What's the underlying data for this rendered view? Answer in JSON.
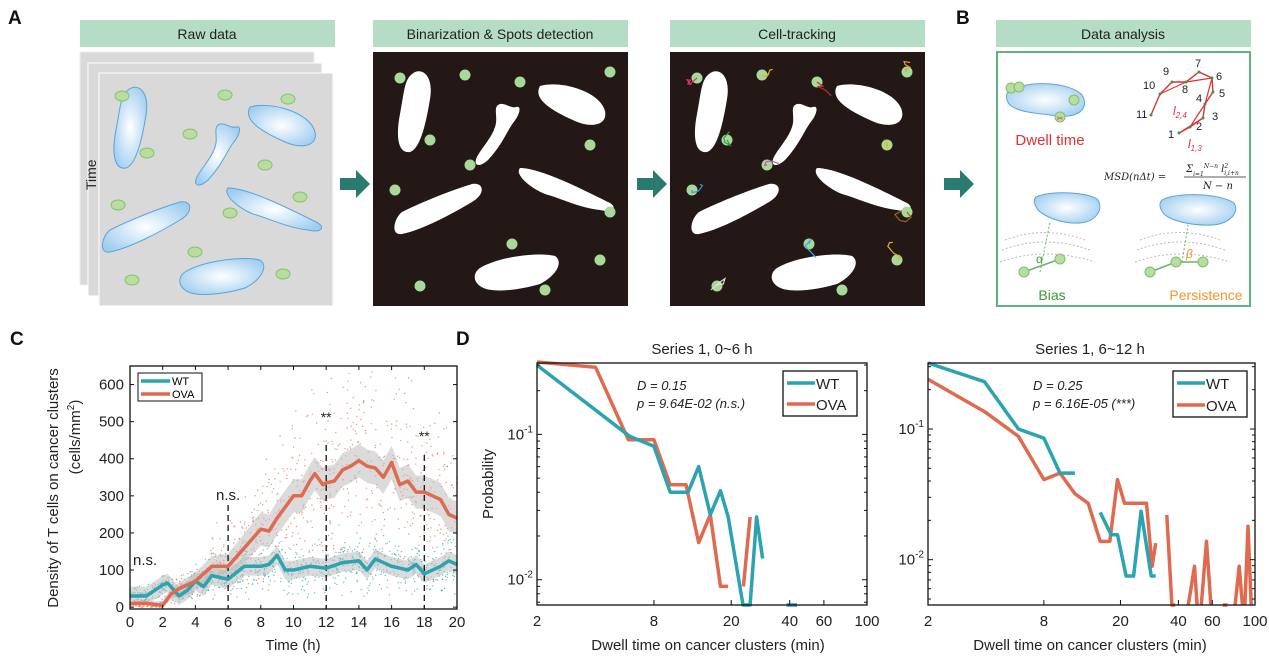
{
  "panels": {
    "a": "A",
    "b": "B",
    "c": "C",
    "d": "D"
  },
  "pipeline": {
    "raw_data": "Raw data",
    "time_label": "Time",
    "binarization": "Binarization & Spots detection",
    "tracking": "Cell-tracking",
    "analysis": "Data analysis"
  },
  "analysis_box": {
    "dwell_time": "Dwell time",
    "bias": "Bias",
    "persistence": "Persistence",
    "alpha": "α",
    "beta": "β",
    "track_numbers": [
      "1",
      "2",
      "3",
      "4",
      "5",
      "6",
      "7",
      "8",
      "9",
      "10",
      "11"
    ],
    "l24": "l",
    "l24_sub": "2,4",
    "l13": "l",
    "l13_sub": "1,3",
    "msd_lhs": "MSD(nΔt) =",
    "msd_num": "Σ",
    "msd_num_sup": "N−n",
    "msd_num_sub": "i=1",
    "msd_num_term": " l",
    "msd_num_term_sup": "2",
    "msd_num_term_sub": "i,i+n",
    "msd_den": "N − n"
  },
  "colors": {
    "wt": "#2ba3b0",
    "ova": "#e06a50",
    "header": "#b5dcc4",
    "arrow": "#2b7a6f",
    "dwell": "#e0303a",
    "bias": "#3a9a3a",
    "persistence": "#f0952a"
  },
  "chart_data": [
    {
      "type": "line",
      "panel": "C",
      "xlabel": "Time (h)",
      "ylabel": "Density of T cells on cancer clusters",
      "ylabel2": "(cells/mm",
      "ylabel2_sup": "2",
      "ylabel2_end": ")",
      "xlim": [
        0,
        20
      ],
      "ylim": [
        -5,
        650
      ],
      "xticks": [
        "0",
        "2",
        "4",
        "6",
        "8",
        "10",
        "12",
        "14",
        "16",
        "18",
        "20"
      ],
      "yticks": [
        "0",
        "100",
        "200",
        "300",
        "400",
        "500",
        "600"
      ],
      "legend": "top-left",
      "series": [
        {
          "name": "WT",
          "points": [
            [
              0,
              30
            ],
            [
              1,
              30
            ],
            [
              2,
              60
            ],
            [
              2.3,
              65
            ],
            [
              3,
              30
            ],
            [
              3.5,
              45
            ],
            [
              4,
              70
            ],
            [
              4.5,
              55
            ],
            [
              5,
              85
            ],
            [
              5.5,
              80
            ],
            [
              6,
              75
            ],
            [
              7,
              110
            ],
            [
              8,
              110
            ],
            [
              8.5,
              115
            ],
            [
              9,
              140
            ],
            [
              9.5,
              100
            ],
            [
              10,
              100
            ],
            [
              11,
              110
            ],
            [
              12,
              105
            ],
            [
              13,
              120
            ],
            [
              14,
              125
            ],
            [
              14.5,
              100
            ],
            [
              15,
              130
            ],
            [
              16,
              110
            ],
            [
              17,
              100
            ],
            [
              17.5,
              115
            ],
            [
              18,
              90
            ],
            [
              19,
              110
            ],
            [
              19.5,
              125
            ],
            [
              20,
              115
            ]
          ]
        },
        {
          "name": "OVA",
          "points": [
            [
              0,
              10
            ],
            [
              1,
              10
            ],
            [
              2,
              5
            ],
            [
              2.5,
              35
            ],
            [
              3,
              50
            ],
            [
              4,
              70
            ],
            [
              5,
              110
            ],
            [
              6,
              110
            ],
            [
              7,
              160
            ],
            [
              8,
              210
            ],
            [
              8.5,
              205
            ],
            [
              9,
              240
            ],
            [
              10,
              300
            ],
            [
              10.5,
              300
            ],
            [
              11,
              340
            ],
            [
              11.3,
              360
            ],
            [
              11.8,
              330
            ],
            [
              12,
              335
            ],
            [
              12.5,
              340
            ],
            [
              13,
              370
            ],
            [
              13.5,
              380
            ],
            [
              14,
              395
            ],
            [
              14.5,
              380
            ],
            [
              15,
              375
            ],
            [
              15.5,
              350
            ],
            [
              16,
              390
            ],
            [
              16.5,
              330
            ],
            [
              17,
              340
            ],
            [
              17.5,
              310
            ],
            [
              18,
              310
            ],
            [
              18.5,
              300
            ],
            [
              19,
              290
            ],
            [
              19.5,
              250
            ],
            [
              20,
              240
            ]
          ]
        }
      ],
      "annotations": [
        {
          "x": 0,
          "label": "n.s."
        },
        {
          "x": 6,
          "label": "n.s."
        },
        {
          "x": 12,
          "label": "**"
        },
        {
          "x": 18,
          "label": "**"
        }
      ]
    },
    {
      "type": "line",
      "panel": "D",
      "title": "Series 1, 0~6 h",
      "xlabel": "Dwell time on cancer clusters (min)",
      "ylabel": "Probability",
      "xscale": "log",
      "yscale": "log",
      "xlim": [
        2,
        100
      ],
      "ylim": [
        0.0067,
        0.31
      ],
      "xticks": [
        "2",
        "8",
        "20",
        "40",
        "60",
        "100"
      ],
      "yticks": [
        {
          "base": "10",
          "exp": "-1"
        },
        {
          "base": "10",
          "exp": "-2"
        }
      ],
      "legend": "top-right",
      "stat_d": "D = 0.15",
      "stat_p": "p = 9.64E-02 (n.s.)",
      "series": [
        {
          "name": "WT",
          "points": [
            [
              2,
              0.3
            ],
            [
              6,
              0.097
            ],
            [
              8,
              0.083
            ],
            [
              9.7,
              0.04
            ],
            [
              12,
              0.04
            ],
            [
              13.6,
              0.06
            ],
            [
              15.6,
              0.028
            ],
            [
              17.6,
              0.041
            ],
            [
              19.3,
              0.027
            ],
            [
              23,
              0.0067
            ],
            [
              25,
              0.0067
            ],
            [
              27,
              0.027
            ],
            [
              29,
              0.014
            ],
            null,
            [
              38.5,
              0.0067
            ],
            [
              43.6,
              0.0067
            ]
          ]
        },
        {
          "name": "OVA",
          "points": [
            [
              2,
              0.315
            ],
            [
              4,
              0.29
            ],
            [
              5.9,
              0.092
            ],
            [
              8,
              0.092
            ],
            [
              9.7,
              0.045
            ],
            [
              11.7,
              0.045
            ],
            [
              13.6,
              0.018
            ],
            [
              15.6,
              0.028
            ],
            [
              17.6,
              0.009
            ],
            [
              19.3,
              0.009
            ],
            null,
            [
              23.1,
              0.009
            ],
            [
              25,
              0.027
            ]
          ]
        }
      ]
    },
    {
      "type": "line",
      "panel": "D",
      "title": "Series 1, 6~12 h",
      "xlabel": "Dwell time on cancer clusters (min)",
      "xscale": "log",
      "yscale": "log",
      "xlim": [
        2,
        100
      ],
      "ylim": [
        0.0045,
        0.32
      ],
      "xticks": [
        "2",
        "8",
        "20",
        "40",
        "60",
        "100"
      ],
      "yticks": [
        {
          "base": "10",
          "exp": "-1"
        },
        {
          "base": "10",
          "exp": "-2"
        }
      ],
      "legend": "top-right",
      "stat_d": "D = 0.25",
      "stat_p": "p = 6.16E-05 (***)",
      "series": [
        {
          "name": "WT",
          "points": [
            [
              2,
              0.32
            ],
            [
              3.93,
              0.23
            ],
            [
              5.9,
              0.1
            ],
            [
              8,
              0.085
            ],
            [
              9.7,
              0.046
            ],
            [
              11.6,
              0.046
            ],
            null,
            [
              15.7,
              0.023
            ],
            [
              17.9,
              0.0155
            ],
            [
              19.3,
              0.0155
            ],
            [
              21.4,
              0.0075
            ],
            [
              23.4,
              0.0075
            ],
            [
              25.6,
              0.0235
            ],
            [
              28.9,
              0.0075
            ],
            [
              30.5,
              0.0075
            ]
          ]
        },
        {
          "name": "OVA",
          "points": [
            [
              2,
              0.24
            ],
            [
              3.93,
              0.136
            ],
            [
              5.9,
              0.088
            ],
            [
              8,
              0.041
            ],
            [
              9.7,
              0.046
            ],
            [
              11.6,
              0.032
            ],
            [
              13.6,
              0.027
            ],
            [
              15.7,
              0.0138
            ],
            [
              17.6,
              0.0138
            ],
            [
              19.3,
              0.041
            ],
            [
              21,
              0.027
            ],
            [
              27.3,
              0.027
            ],
            [
              29.2,
              0.0089
            ],
            [
              30.5,
              0.0134
            ],
            null,
            [
              34.8,
              0.022
            ],
            [
              37,
              0.0045
            ],
            [
              38.5,
              0.0045
            ],
            null,
            [
              45,
              0.0045
            ],
            [
              48.5,
              0.0089
            ],
            [
              50,
              0.0045
            ],
            null,
            [
              52.6,
              0.0045
            ],
            [
              56,
              0.0138
            ],
            [
              59,
              0.0045
            ],
            null,
            [
              68,
              0.0045
            ],
            [
              72,
              0.0045
            ],
            null,
            [
              78.8,
              0.0045
            ],
            [
              82.8,
              0.0089
            ],
            [
              86,
              0.0045
            ],
            null,
            [
              88.6,
              0.0045
            ],
            [
              92,
              0.018
            ],
            [
              95.5,
              0.0045
            ]
          ]
        }
      ]
    }
  ]
}
